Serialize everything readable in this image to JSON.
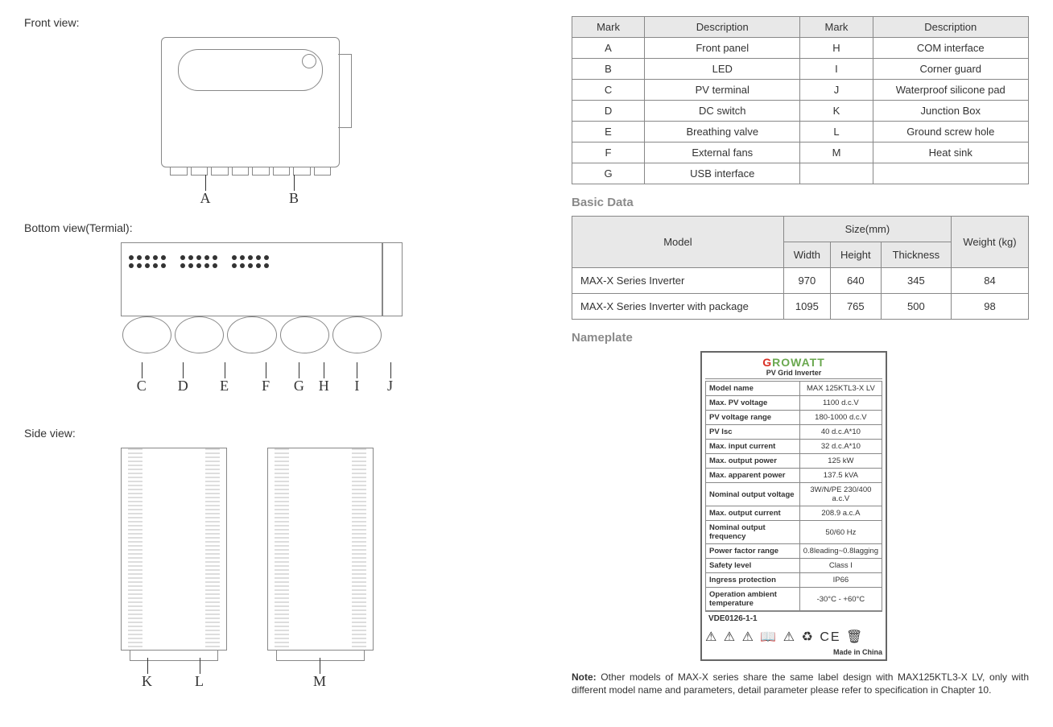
{
  "labels": {
    "front": "Front view:",
    "bottom": "Bottom view(Termial):",
    "side": "Side view:"
  },
  "callouts": {
    "front": [
      "A",
      "B"
    ],
    "bottom": [
      "C",
      "D",
      "E",
      "F",
      "G",
      "H",
      "I",
      "J"
    ],
    "side_left": [
      "K",
      "L"
    ],
    "side_right": [
      "M"
    ]
  },
  "mark_table": {
    "headers": [
      "Mark",
      "Description",
      "Mark",
      "Description"
    ],
    "rows": [
      [
        "A",
        "Front panel",
        "H",
        "COM interface"
      ],
      [
        "B",
        "LED",
        "I",
        "Corner guard"
      ],
      [
        "C",
        "PV terminal",
        "J",
        "Waterproof silicone pad"
      ],
      [
        "D",
        "DC switch",
        "K",
        "Junction Box"
      ],
      [
        "E",
        "Breathing valve",
        "L",
        "Ground screw hole"
      ],
      [
        "F",
        "External fans",
        "M",
        "Heat sink"
      ],
      [
        "G",
        "USB interface",
        "",
        ""
      ]
    ]
  },
  "sections": {
    "basic": "Basic Data",
    "nameplate": "Nameplate"
  },
  "size_table": {
    "model_header": "Model",
    "size_header": "Size(mm)",
    "weight_header": "Weight (kg)",
    "subheaders": [
      "Width",
      "Height",
      "Thickness"
    ],
    "rows": [
      {
        "model": "MAX-X Series Inverter",
        "w": "970",
        "h": "640",
        "t": "345",
        "kg": "84"
      },
      {
        "model": "MAX-X Series Inverter with package",
        "w": "1095",
        "h": "765",
        "t": "500",
        "kg": "98"
      }
    ]
  },
  "nameplate": {
    "brand_g": "G",
    "brand_rest": "ROWATT",
    "sub": "PV Grid Inverter",
    "rows": [
      [
        "Model name",
        "MAX 125KTL3-X LV"
      ],
      [
        "Max. PV voltage",
        "1100 d.c.V"
      ],
      [
        "PV voltage range",
        "180-1000 d.c.V"
      ],
      [
        "PV Isc",
        "40 d.c.A*10"
      ],
      [
        "Max. input current",
        "32 d.c.A*10"
      ],
      [
        "Max. output power",
        "125 kW"
      ],
      [
        "Max. apparent power",
        "137.5 kVA"
      ],
      [
        "Nominal output voltage",
        "3W/N/PE 230/400 a.c.V"
      ],
      [
        "Max. output current",
        "208.9 a.c.A"
      ],
      [
        "Nominal output frequency",
        "50/60 Hz"
      ],
      [
        "Power factor range",
        "0.8leading~0.8lagging"
      ],
      [
        "Safety level",
        "Class I"
      ],
      [
        "Ingress protection",
        "IP66"
      ],
      [
        "Operation ambient temperature",
        "-30°C - +60°C"
      ]
    ],
    "cert": "VDE0126-1-1",
    "icons": "⚠ ⚠ ⚠ 📖 ⚠ ♻ CE 🗑",
    "made": "Made in China"
  },
  "note": {
    "label": "Note:",
    "text": " Other models of MAX-X series share the same label design with MAX125KTL3-X LV, only with different model name and parameters, detail parameter please refer to specification in Chapter 10."
  }
}
